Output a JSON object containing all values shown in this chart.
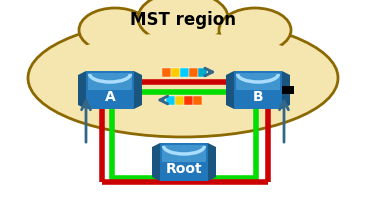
{
  "bg_color": "#FFFFFF",
  "cloud_color": "#F5E6B0",
  "cloud_edge_color": "#8B6800",
  "switch_body_color": "#2277BB",
  "switch_highlight": "#55AADD",
  "switch_dish_color": "#AADDFF",
  "title": "MST region",
  "title_fontsize": 12,
  "label_A": "A",
  "label_B": "B",
  "label_Root": "Root",
  "label_fontsize": 10,
  "line_red": "#CC0000",
  "line_green": "#00DD00",
  "arrow_color": "#336688",
  "seg_colors_top": [
    "#FF6600",
    "#FFCC00",
    "#00CCFF",
    "#FF6600",
    "#00AACC"
  ],
  "seg_colors_bot": [
    "#00CCFF",
    "#FFCC00",
    "#FF3300",
    "#FF6600"
  ],
  "black": "#000000",
  "fig_w": 3.67,
  "fig_h": 1.99,
  "dpi": 100
}
